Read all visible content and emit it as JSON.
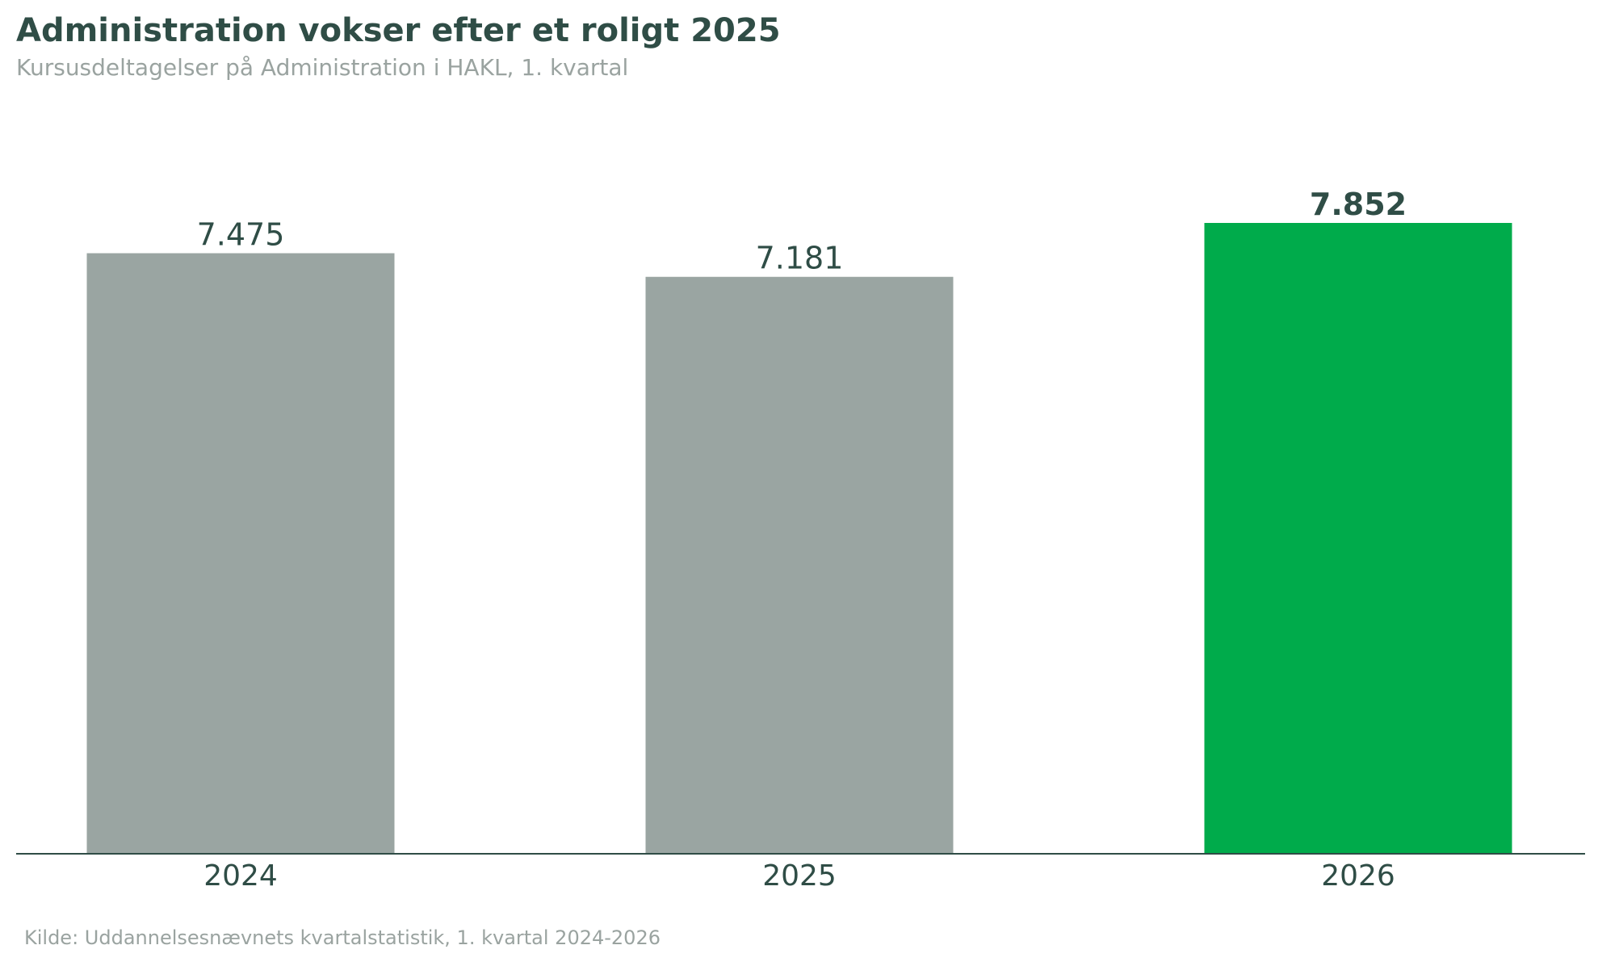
{
  "title": "Administration vokser efter et roligt 2025",
  "subtitle": "Kursusdeltagelser på Administration i HAKL, 1. kvartal",
  "source": "Kilde: Uddannelsesnævnets kvartalstatistik, 1. kvartal 2024-2026",
  "colors": {
    "title": "#2f4d46",
    "muted_text": "#9aa3a0",
    "bar_default": "#9aa5a2",
    "bar_highlight": "#00ab4b",
    "axis": "#2f4d46"
  },
  "chart_data": {
    "type": "bar",
    "title": "Administration vokser efter et roligt 2025",
    "subtitle": "Kursusdeltagelser på Administration i HAKL, 1. kvartal",
    "categories": [
      "2024",
      "2025",
      "2026"
    ],
    "values": [
      7475,
      7181,
      7852
    ],
    "value_labels": [
      "7.475",
      "7.181",
      "7.852"
    ],
    "highlight_index": 2,
    "xlabel": "",
    "ylabel": "",
    "ylim": [
      0,
      7852
    ],
    "grid": false,
    "legend": "none",
    "y_axis_visible": false
  }
}
